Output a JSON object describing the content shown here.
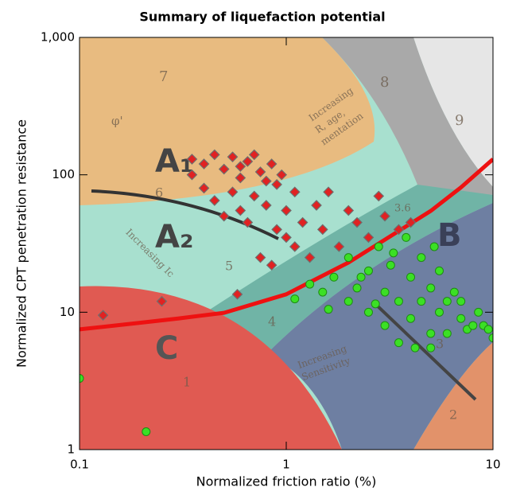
{
  "chart_data": {
    "type": "scatter",
    "title": "Summary of liquefaction potential",
    "xlabel": "Normalized friction ratio (%)",
    "ylabel": "Normalized CPT penetration resistance",
    "xscale": "log",
    "yscale": "log",
    "xlim": [
      0.1,
      10
    ],
    "ylim": [
      1,
      1000
    ],
    "xticks": [
      0.1,
      1,
      10
    ],
    "yticks": [
      1,
      10,
      100,
      {
        "value": 1000,
        "label": "1,000"
      }
    ],
    "annotations": [
      "7",
      "8",
      "9",
      "6",
      "5",
      "4",
      "3",
      "2",
      "1",
      "3.6",
      "A₁",
      "A₂",
      "B",
      "C",
      "φ'",
      "Increasing",
      "R, age,",
      "mentation",
      "Increasing Ic",
      "Increasing",
      "Sensitivity"
    ],
    "series": [
      {
        "type": "scatter",
        "marker": "diamond",
        "color": "#e02222",
        "x": [
          0.35,
          0.4,
          0.45,
          0.5,
          0.55,
          0.6,
          0.65,
          0.7,
          0.75,
          0.8,
          0.85,
          0.4,
          0.45,
          0.5,
          0.55,
          0.6,
          0.65,
          0.7,
          0.8,
          0.9,
          0.9,
          1.0,
          1.0,
          1.1,
          1.2,
          1.3,
          1.4,
          1.5,
          1.6,
          1.8,
          2.0,
          2.2,
          2.5,
          2.8,
          3.0,
          3.5,
          4.0,
          0.75,
          0.85,
          0.58,
          0.25,
          0.13,
          0.35,
          0.6,
          0.95,
          1.1
        ],
        "y": [
          130,
          120,
          140,
          110,
          135,
          95,
          125,
          140,
          105,
          90,
          120,
          80,
          65,
          50,
          75,
          55,
          45,
          70,
          60,
          40,
          85,
          55,
          35,
          30,
          45,
          25,
          60,
          40,
          75,
          30,
          55,
          45,
          35,
          70,
          50,
          40,
          45,
          25,
          22,
          13.5,
          12,
          9.5,
          100,
          115,
          100,
          75
        ]
      },
      {
        "type": "scatter",
        "marker": "circle",
        "color": "#3be025",
        "x": [
          1.1,
          1.3,
          1.5,
          1.7,
          2,
          2,
          2.2,
          2.5,
          2.5,
          2.8,
          3,
          3,
          3.2,
          3.5,
          3.5,
          3.8,
          4,
          4,
          4.2,
          4.5,
          4.5,
          5,
          5,
          5,
          5.2,
          5.5,
          5.5,
          6,
          6,
          6.5,
          7,
          7,
          7.5,
          8,
          8.5,
          9,
          9.5,
          10,
          2.3,
          3.3,
          0.1,
          0.21,
          1.6,
          2.7
        ],
        "y": [
          12.5,
          16,
          14,
          18,
          12,
          25,
          15,
          20,
          10,
          30,
          14,
          8,
          22,
          12,
          6,
          35,
          18,
          9,
          5.5,
          25,
          12,
          15,
          7,
          5.5,
          30,
          20,
          10,
          12,
          7,
          14,
          9,
          12,
          7.5,
          8,
          10,
          8,
          7.5,
          6.5,
          18,
          27,
          3.3,
          1.35,
          10.5,
          11.5
        ]
      },
      {
        "type": "line",
        "color": "#ee1111",
        "x": [
          0.1,
          0.2,
          0.3,
          0.5,
          1,
          2,
          5,
          7,
          10
        ],
        "y": [
          7.5,
          8.4,
          9,
          9.9,
          13.5,
          23,
          54.6,
          81,
          130
        ]
      }
    ]
  }
}
